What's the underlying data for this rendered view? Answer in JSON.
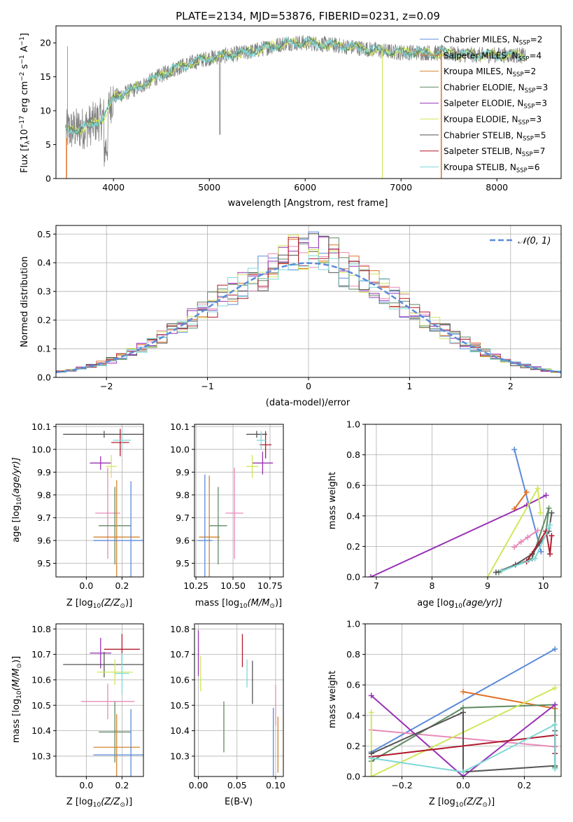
{
  "colors": {
    "Chabrier MILES": "#5b8bd9",
    "Salpeter MILES": "#e07127",
    "Kroupa MILES": "#d2842f",
    "Chabrier ELODIE": "#5e8a63",
    "Salpeter ELODIE": "#9932b5",
    "Kroupa ELODIE": "#d1e65a",
    "Chabrier STELIB": "#555555",
    "Salpeter STELIB": "#b01c2e",
    "Kroupa STELIB": "#7fd8d8",
    "Pink": "#e78ab8",
    "Gray": "#808080",
    "normal": "#5b8bd9"
  },
  "chart_data": [
    {
      "id": "spectrum",
      "type": "line",
      "title": "PLATE=2134, MJD=53876, FIBERID=0231, z=0.09",
      "xlabel": "wavelength [Angstrom, rest frame]",
      "ylabel": "Flux [f",
      "ylabel_sub": "λ",
      "ylabel_mid": "10",
      "ylabel_sup1": "−17",
      "ylabel_rest": " erg cm",
      "ylabel_sup2": "−2",
      "ylabel_rest2": " s",
      "ylabel_sup3": "−1",
      "ylabel_rest3": " A",
      "ylabel_sup4": "−1",
      "ylabel_end": "]",
      "xlim": [
        3400,
        8670
      ],
      "ylim": [
        0,
        22.5
      ],
      "xticks": [
        4000,
        5000,
        6000,
        7000,
        8000
      ],
      "yticks": [
        0,
        5,
        10,
        15,
        20
      ],
      "continuum": [
        [
          3500,
          7
        ],
        [
          3700,
          7.5
        ],
        [
          3900,
          9
        ],
        [
          4000,
          12
        ],
        [
          4200,
          13
        ],
        [
          4400,
          14.5
        ],
        [
          4600,
          16
        ],
        [
          4800,
          17
        ],
        [
          5000,
          17.8
        ],
        [
          5200,
          18.2
        ],
        [
          5400,
          18.6
        ],
        [
          5600,
          19.3
        ],
        [
          5800,
          20
        ],
        [
          6000,
          20
        ],
        [
          6200,
          19.8
        ],
        [
          6400,
          19.5
        ],
        [
          6600,
          19.2
        ],
        [
          6800,
          18.8
        ],
        [
          7000,
          18.6
        ],
        [
          7200,
          18.6
        ],
        [
          7400,
          18.5
        ],
        [
          7600,
          18.3
        ],
        [
          7800,
          18.2
        ],
        [
          8000,
          18.2
        ],
        [
          8200,
          18.2
        ],
        [
          8300,
          18.1
        ]
      ],
      "legend": [
        {
          "label": "Chabrier MILES, N",
          "sub": "SSP",
          "tail": "=2",
          "color_key": "Chabrier MILES"
        },
        {
          "label": "Salpeter MILES, N",
          "sub": "SSP",
          "tail": "=4",
          "color_key": "Salpeter MILES"
        },
        {
          "label": "Kroupa MILES, N",
          "sub": "SSP",
          "tail": "=2",
          "color_key": "Kroupa MILES"
        },
        {
          "label": "Chabrier ELODIE, N",
          "sub": "SSP",
          "tail": "=3",
          "color_key": "Chabrier ELODIE"
        },
        {
          "label": "Salpeter ELODIE, N",
          "sub": "SSP",
          "tail": "=3",
          "color_key": "Salpeter ELODIE"
        },
        {
          "label": "Kroupa ELODIE, N",
          "sub": "SSP",
          "tail": "=3",
          "color_key": "Kroupa ELODIE"
        },
        {
          "label": "Chabrier STELIB, N",
          "sub": "SSP",
          "tail": "=5",
          "color_key": "Chabrier STELIB"
        },
        {
          "label": "Salpeter STELIB, N",
          "sub": "SSP",
          "tail": "=7",
          "color_key": "Salpeter STELIB"
        },
        {
          "label": "Kroupa STELIB, N",
          "sub": "SSP",
          "tail": "=6",
          "color_key": "Kroupa STELIB"
        }
      ]
    },
    {
      "id": "residuals",
      "type": "bar",
      "xlabel": "(data-model)/error",
      "ylabel": "Normed distribution",
      "xlim": [
        -2.5,
        2.5
      ],
      "ylim": [
        0,
        0.53
      ],
      "xticks": [
        -2,
        -1,
        0,
        1,
        2
      ],
      "yticks": [
        0.0,
        0.1,
        0.2,
        0.3,
        0.4,
        0.5
      ],
      "bin_width": 0.1,
      "legend": "𝒩(0, 1)",
      "series_color_keys": [
        "Chabrier MILES",
        "Salpeter MILES",
        "Pink",
        "Chabrier ELODIE",
        "Salpeter ELODIE",
        "Kroupa ELODIE",
        "Chabrier STELIB",
        "Salpeter STELIB",
        "Kroupa STELIB"
      ]
    },
    {
      "id": "age_vs_Z",
      "type": "scatter",
      "xlabel": "Z [log",
      "xlabel_sub": "10",
      "xlabel_tail": "(Z/Z",
      "xlabel_sub2": "⊙",
      "xlabel_end": ")]",
      "ylabel": "age  [log",
      "ylabel_sub": "10",
      "ylabel_tail": "(age/yr)]",
      "xlim": [
        -0.17,
        0.32
      ],
      "ylim": [
        9.44,
        10.11
      ],
      "xticks": [
        0.0,
        0.2
      ],
      "xtick_labels": [
        "0.0",
        "0.2"
      ],
      "yticks": [
        9.5,
        9.6,
        9.7,
        9.8,
        9.9,
        10.0,
        10.1
      ],
      "points": [
        {
          "x": 0.1,
          "y": 10.066,
          "xerr": 0.23,
          "yerr": 0.015,
          "c": "Chabrier STELIB"
        },
        {
          "x": 0.19,
          "y": 10.03,
          "xerr": 0.05,
          "yerr": 0.06,
          "c": "Salpeter STELIB"
        },
        {
          "x": 0.2,
          "y": 10.04,
          "xerr": 0.05,
          "yerr": 0.04,
          "c": "Kroupa STELIB"
        },
        {
          "x": 0.08,
          "y": 9.94,
          "xerr": 0.06,
          "yerr": 0.03,
          "c": "Salpeter ELODIE"
        },
        {
          "x": 0.14,
          "y": 9.925,
          "xerr": 0.03,
          "yerr": 0.05,
          "c": "Kroupa ELODIE"
        },
        {
          "x": 0.12,
          "y": 9.72,
          "xerr": 0.07,
          "yerr": 0.2,
          "c": "Pink"
        },
        {
          "x": 0.16,
          "y": 9.665,
          "xerr": 0.09,
          "yerr": 0.17,
          "c": "Chabrier ELODIE"
        },
        {
          "x": 0.17,
          "y": 9.615,
          "xerr": 0.13,
          "yerr": 0.25,
          "c": "Kroupa MILES"
        },
        {
          "x": 0.25,
          "y": 9.6,
          "xerr": 0.21,
          "yerr": 0.26,
          "c": "Chabrier MILES"
        }
      ]
    },
    {
      "id": "age_vs_mass",
      "type": "scatter",
      "xlabel": "mass [log",
      "xlabel_sub": "10",
      "xlabel_tail": "(M/M",
      "xlabel_sub2": "⊙",
      "xlabel_end": ")]",
      "xlim": [
        10.24,
        10.84
      ],
      "ylim": [
        9.44,
        10.11
      ],
      "xticks": [
        10.25,
        10.5,
        10.75
      ],
      "xtick_labels": [
        "10.25",
        "10.50",
        "10.75"
      ],
      "yticks": [
        9.5,
        9.6,
        9.7,
        9.8,
        9.9,
        10.0,
        10.1
      ],
      "points": [
        {
          "x": 10.66,
          "y": 10.066,
          "xerr": 0.07,
          "yerr": 0.015,
          "c": "Chabrier STELIB"
        },
        {
          "x": 10.72,
          "y": 10.02,
          "xerr": 0.04,
          "yerr": 0.06,
          "c": "Salpeter STELIB"
        },
        {
          "x": 10.69,
          "y": 10.04,
          "xerr": 0.03,
          "yerr": 0.04,
          "c": "Kroupa STELIB"
        },
        {
          "x": 10.7,
          "y": 9.94,
          "xerr": 0.07,
          "yerr": 0.05,
          "c": "Salpeter ELODIE"
        },
        {
          "x": 10.63,
          "y": 9.925,
          "xerr": 0.04,
          "yerr": 0.05,
          "c": "Kroupa ELODIE"
        },
        {
          "x": 10.51,
          "y": 9.72,
          "xerr": 0.06,
          "yerr": 0.2,
          "c": "Pink"
        },
        {
          "x": 10.4,
          "y": 9.665,
          "xerr": 0.06,
          "yerr": 0.17,
          "c": "Chabrier ELODIE"
        },
        {
          "x": 10.34,
          "y": 9.615,
          "xerr": 0.07,
          "yerr": 0.27,
          "c": "Kroupa MILES"
        },
        {
          "x": 10.31,
          "y": 9.6,
          "xerr": 0.05,
          "yerr": 0.29,
          "c": "Chabrier MILES"
        }
      ]
    },
    {
      "id": "weight_vs_age",
      "type": "line",
      "xlabel": "age  [log",
      "xlabel_sub": "10",
      "xlabel_tail": "(age/yr)]",
      "ylabel": "mass weight",
      "xlim": [
        6.8,
        10.32
      ],
      "ylim": [
        0,
        1.0
      ],
      "xticks": [
        7,
        8,
        9,
        10
      ],
      "yticks": [
        0.0,
        0.2,
        0.4,
        0.6,
        0.8,
        1.0
      ],
      "series": [
        {
          "c": "Chabrier MILES",
          "pts": [
            [
              9.48,
              0.835
            ],
            [
              9.96,
              0.165
            ]
          ]
        },
        {
          "c": "Salpeter MILES",
          "pts": [
            [
              9.48,
              0.445
            ],
            [
              9.7,
              0.555
            ]
          ]
        },
        {
          "c": "Pink",
          "pts": [
            [
              9.48,
              0.195
            ],
            [
              9.6,
              0.23
            ],
            [
              9.72,
              0.26
            ],
            [
              9.9,
              0.305
            ]
          ]
        },
        {
          "c": "Chabrier ELODIE",
          "pts": [
            [
              9.2,
              0.03
            ],
            [
              9.8,
              0.12
            ],
            [
              10.1,
              0.45
            ],
            [
              10.05,
              0.3
            ]
          ]
        },
        {
          "c": "Salpeter ELODIE",
          "pts": [
            [
              6.9,
              0.0
            ],
            [
              9.7,
              0.47
            ],
            [
              10.05,
              0.535
            ]
          ]
        },
        {
          "c": "Kroupa ELODIE",
          "pts": [
            [
              9.0,
              0.0
            ],
            [
              9.9,
              0.58
            ],
            [
              9.95,
              0.42
            ]
          ]
        },
        {
          "c": "Chabrier STELIB",
          "pts": [
            [
              9.15,
              0.03
            ],
            [
              9.5,
              0.08
            ],
            [
              9.8,
              0.15
            ],
            [
              10.1,
              0.3
            ],
            [
              10.15,
              0.42
            ]
          ]
        },
        {
          "c": "Salpeter STELIB",
          "pts": [
            [
              9.7,
              0.1
            ],
            [
              10.05,
              0.3
            ],
            [
              10.12,
              0.15
            ],
            [
              10.15,
              0.27
            ]
          ]
        },
        {
          "c": "Kroupa STELIB",
          "pts": [
            [
              9.25,
              0.04
            ],
            [
              9.85,
              0.12
            ],
            [
              10.1,
              0.32
            ],
            [
              10.12,
              0.34
            ]
          ]
        }
      ]
    },
    {
      "id": "mass_vs_Z",
      "type": "scatter",
      "xlabel": "Z [log",
      "xlabel_sub": "10",
      "xlabel_tail": "(Z/Z",
      "xlabel_sub2": "⊙",
      "xlabel_end": ")]",
      "ylabel": "mass [log",
      "ylabel_sub": "10",
      "ylabel_tail": "(M/M",
      "ylabel_sub2": "⊙",
      "ylabel_end": ")]",
      "xlim": [
        -0.17,
        0.32
      ],
      "ylim": [
        10.22,
        10.82
      ],
      "xticks": [
        0.0,
        0.2
      ],
      "xtick_labels": [
        "0.0",
        "0.2"
      ],
      "yticks": [
        10.3,
        10.4,
        10.5,
        10.6,
        10.7,
        10.8
      ],
      "points": [
        {
          "x": 0.08,
          "y": 10.705,
          "xerr": 0.06,
          "yerr": 0.06,
          "c": "Salpeter ELODIE"
        },
        {
          "x": 0.2,
          "y": 10.72,
          "xerr": 0.1,
          "yerr": 0.06,
          "c": "Salpeter STELIB"
        },
        {
          "x": 0.1,
          "y": 10.66,
          "xerr": 0.23,
          "yerr": 0.05,
          "c": "Chabrier STELIB"
        },
        {
          "x": 0.16,
          "y": 10.63,
          "xerr": 0.1,
          "yerr": 0.05,
          "c": "Kroupa ELODIE"
        },
        {
          "x": 0.2,
          "y": 10.625,
          "xerr": 0.04,
          "yerr": 0.08,
          "c": "Kroupa STELIB"
        },
        {
          "x": 0.12,
          "y": 10.515,
          "xerr": 0.15,
          "yerr": 0.07,
          "c": "Pink"
        },
        {
          "x": 0.16,
          "y": 10.395,
          "xerr": 0.09,
          "yerr": 0.12,
          "c": "Chabrier ELODIE"
        },
        {
          "x": 0.17,
          "y": 10.335,
          "xerr": 0.13,
          "yerr": 0.13,
          "c": "Kroupa MILES"
        },
        {
          "x": 0.25,
          "y": 10.305,
          "xerr": 0.21,
          "yerr": 0.18,
          "c": "Chabrier MILES"
        }
      ]
    },
    {
      "id": "mass_vs_ebv",
      "type": "scatter",
      "xlabel": "E(B-V)",
      "xlim": [
        -0.005,
        0.11
      ],
      "ylim": [
        10.22,
        10.82
      ],
      "xticks": [
        0.0,
        0.05,
        0.1
      ],
      "xtick_labels": [
        "0.00",
        "0.05",
        "0.10"
      ],
      "yticks": [
        10.3,
        10.4,
        10.5,
        10.6,
        10.7,
        10.8
      ],
      "points": [
        {
          "x": 0.0,
          "y": 10.705,
          "xerr": 0,
          "yerr": 0.09,
          "c": "Salpeter ELODIE"
        },
        {
          "x": 0.003,
          "y": 10.625,
          "xerr": 0,
          "yerr": 0.07,
          "c": "Kroupa ELODIE"
        },
        {
          "x": 0.057,
          "y": 10.715,
          "xerr": 0,
          "yerr": 0.065,
          "c": "Salpeter STELIB"
        },
        {
          "x": 0.063,
          "y": 10.625,
          "xerr": 0,
          "yerr": 0.055,
          "c": "Kroupa STELIB"
        },
        {
          "x": 0.07,
          "y": 10.59,
          "xerr": 0,
          "yerr": 0.085,
          "c": "Chabrier STELIB"
        },
        {
          "x": 0.033,
          "y": 10.415,
          "xerr": 0,
          "yerr": 0.1,
          "c": "Chabrier ELODIE"
        },
        {
          "x": 0.1,
          "y": 10.5,
          "xerr": 0,
          "yerr": 0.08,
          "c": "Pink"
        },
        {
          "x": 0.097,
          "y": 10.32,
          "xerr": 0,
          "yerr": 0.17,
          "c": "Chabrier MILES"
        },
        {
          "x": 0.103,
          "y": 10.345,
          "xerr": 0,
          "yerr": 0.11,
          "c": "Kroupa MILES"
        }
      ]
    },
    {
      "id": "weight_vs_Z",
      "type": "line",
      "xlabel": "Z [log",
      "xlabel_sub": "10",
      "xlabel_tail": "(Z/Z",
      "xlabel_sub2": "⊙",
      "xlabel_end": ")]",
      "ylabel": "mass weight",
      "xlim": [
        -0.32,
        0.32
      ],
      "ylim": [
        0,
        1.0
      ],
      "xticks": [
        -0.2,
        0.0,
        0.2
      ],
      "xtick_labels": [
        "−0.2",
        "0.0",
        "0.2"
      ],
      "yticks": [
        0.0,
        0.2,
        0.4,
        0.6,
        0.8,
        1.0
      ],
      "series": [
        {
          "c": "Chabrier MILES",
          "pts": [
            [
              -0.3,
              0.16
            ],
            [
              0.3,
              0.835
            ]
          ]
        },
        {
          "c": "Salpeter MILES",
          "pts": [
            [
              0.0,
              0.555
            ],
            [
              0.3,
              0.445
            ]
          ]
        },
        {
          "c": "Pink",
          "pts": [
            [
              -0.3,
              0.305
            ],
            [
              0.3,
              0.195
            ]
          ]
        },
        {
          "c": "Chabrier ELODIE",
          "pts": [
            [
              -0.3,
              0.1
            ],
            [
              0.0,
              0.45
            ],
            [
              0.3,
              0.47
            ],
            [
              0.3,
              0.06
            ]
          ]
        },
        {
          "c": "Salpeter ELODIE",
          "pts": [
            [
              -0.3,
              0.53
            ],
            [
              0.0,
              0.0
            ],
            [
              0.3,
              0.47
            ]
          ]
        },
        {
          "c": "Kroupa ELODIE",
          "pts": [
            [
              -0.3,
              0.42
            ],
            [
              -0.3,
              0.0
            ],
            [
              0.3,
              0.58
            ]
          ]
        },
        {
          "c": "Chabrier STELIB",
          "pts": [
            [
              -0.3,
              0.15
            ],
            [
              0.0,
              0.42
            ],
            [
              0.0,
              0.03
            ],
            [
              0.3,
              0.07
            ],
            [
              0.3,
              0.3
            ]
          ]
        },
        {
          "c": "Salpeter STELIB",
          "pts": [
            [
              -0.3,
              0.13
            ],
            [
              0.3,
              0.27
            ],
            [
              0.3,
              0.15
            ]
          ]
        },
        {
          "c": "Kroupa STELIB",
          "pts": [
            [
              -0.3,
              0.12
            ],
            [
              0.0,
              0.03
            ],
            [
              0.3,
              0.34
            ],
            [
              0.3,
              0.05
            ]
          ]
        }
      ]
    }
  ]
}
